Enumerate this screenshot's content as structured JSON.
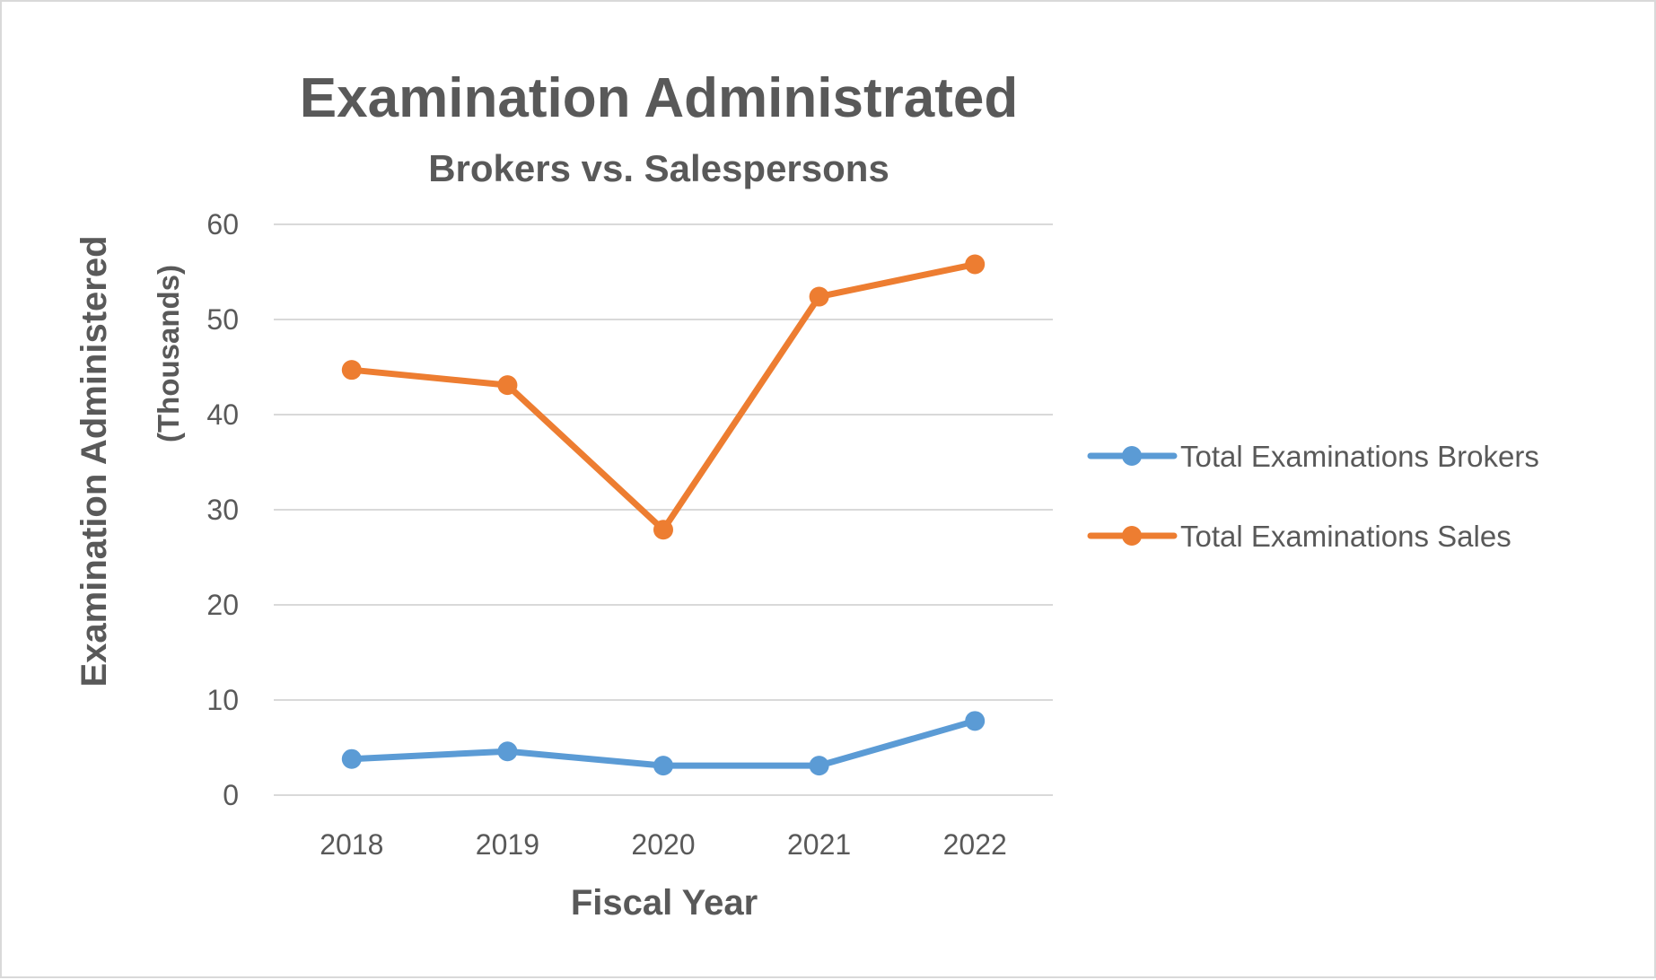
{
  "chart_data": {
    "type": "line",
    "title": "Examination Administrated",
    "subtitle": "Brokers vs. Salespersons",
    "xlabel": "Fiscal Year",
    "ylabel": "Examination Administered",
    "ylabel_sub": "(Thousands)",
    "categories": [
      "2018",
      "2019",
      "2020",
      "2021",
      "2022"
    ],
    "ylim": [
      0,
      60
    ],
    "yticks": [
      "0",
      "10",
      "20",
      "30",
      "40",
      "50",
      "60"
    ],
    "grid": true,
    "legend_position": "right",
    "series": [
      {
        "name": "Total Examinations Brokers",
        "color": "#5b9bd5",
        "values": [
          3.8,
          4.6,
          3.1,
          3.1,
          7.8
        ]
      },
      {
        "name": "Total Examinations Sales",
        "color": "#ed7d31",
        "values": [
          44.7,
          43.1,
          27.9,
          52.4,
          55.8
        ]
      }
    ]
  }
}
